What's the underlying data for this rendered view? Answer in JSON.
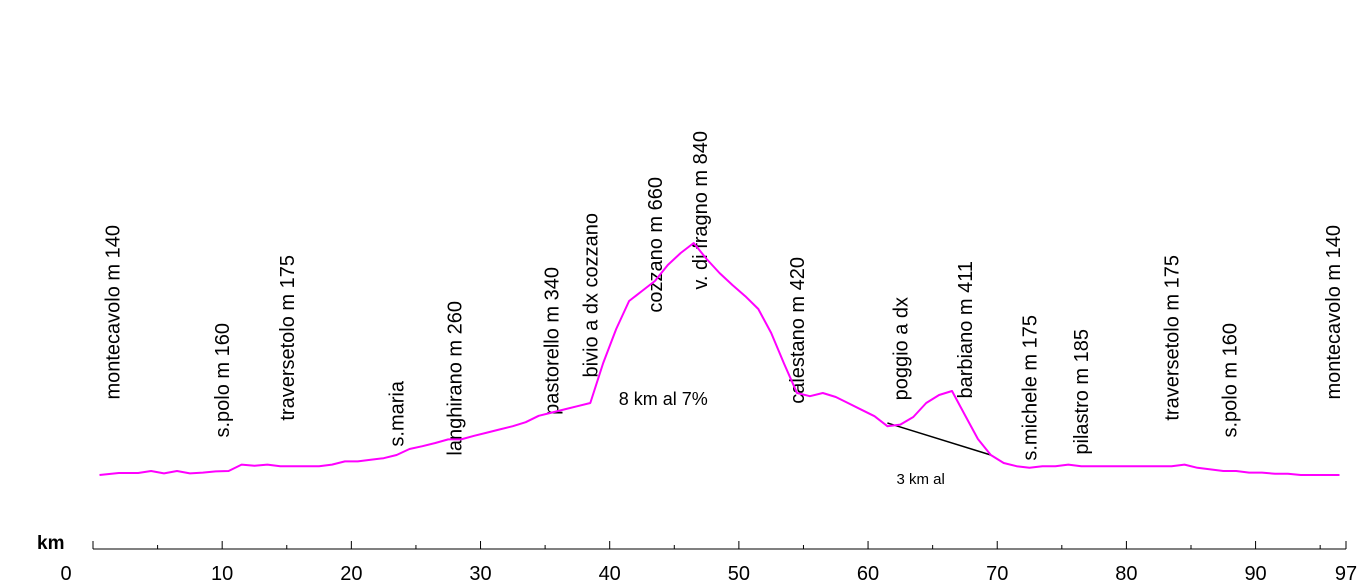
{
  "chart_data": {
    "type": "line",
    "xlabel": "km",
    "colors": {
      "profile": "#ff00ff",
      "annotation_line": "#000000",
      "axis": "#000000"
    },
    "xlim": [
      0,
      97
    ],
    "ylim": [
      0,
      1000
    ],
    "xticks": [
      {
        "value": 0,
        "label": "0"
      },
      {
        "value": 10,
        "label": "10"
      },
      {
        "value": 20,
        "label": "20"
      },
      {
        "value": 30,
        "label": "30"
      },
      {
        "value": 40,
        "label": "40"
      },
      {
        "value": 50,
        "label": "50"
      },
      {
        "value": 60,
        "label": "60"
      },
      {
        "value": 70,
        "label": "70"
      },
      {
        "value": 80,
        "label": "80"
      },
      {
        "value": 90,
        "label": "90"
      },
      {
        "value": 97,
        "label": "97"
      }
    ],
    "minor_ticks": [
      5,
      15,
      25,
      35,
      45,
      55,
      65,
      75,
      85,
      95
    ],
    "series": [
      {
        "points": [
          [
            0.5,
            140
          ],
          [
            2,
            145
          ],
          [
            3.5,
            145
          ],
          [
            4.5,
            150
          ],
          [
            5.5,
            144
          ],
          [
            6.5,
            150
          ],
          [
            7.5,
            144
          ],
          [
            8.5,
            146
          ],
          [
            9.5,
            149
          ],
          [
            10.5,
            150
          ],
          [
            11.5,
            166
          ],
          [
            12.5,
            163
          ],
          [
            13.5,
            166
          ],
          [
            14.5,
            162
          ],
          [
            15.5,
            162
          ],
          [
            16.5,
            162
          ],
          [
            17.5,
            162
          ],
          [
            18.5,
            166
          ],
          [
            19.5,
            174
          ],
          [
            20.5,
            174
          ],
          [
            21.5,
            178
          ],
          [
            22.5,
            182
          ],
          [
            23.5,
            190
          ],
          [
            24.5,
            205
          ],
          [
            25.5,
            212
          ],
          [
            26.5,
            220
          ],
          [
            27.5,
            229
          ],
          [
            28.5,
            229
          ],
          [
            29.5,
            238
          ],
          [
            30.5,
            246
          ],
          [
            31.5,
            254
          ],
          [
            32.5,
            262
          ],
          [
            33.5,
            272
          ],
          [
            34.5,
            288
          ],
          [
            35.5,
            296
          ],
          [
            36.5,
            304
          ],
          [
            37.5,
            312
          ],
          [
            38.5,
            320
          ],
          [
            39.5,
            420
          ],
          [
            40.5,
            505
          ],
          [
            41.5,
            575
          ],
          [
            42.5,
            600
          ],
          [
            43.5,
            625
          ],
          [
            44.5,
            665
          ],
          [
            45.5,
            695
          ],
          [
            46.5,
            720
          ],
          [
            47.5,
            680
          ],
          [
            48.5,
            645
          ],
          [
            49.5,
            615
          ],
          [
            50.5,
            587
          ],
          [
            51.5,
            555
          ],
          [
            52.5,
            495
          ],
          [
            53.5,
            418
          ],
          [
            54.5,
            345
          ],
          [
            55.5,
            337
          ],
          [
            56.5,
            345
          ],
          [
            57.5,
            335
          ],
          [
            58.5,
            319
          ],
          [
            59.5,
            303
          ],
          [
            60.5,
            287
          ],
          [
            61.5,
            262
          ],
          [
            62.5,
            266
          ],
          [
            63.5,
            285
          ],
          [
            64.5,
            320
          ],
          [
            65.5,
            340
          ],
          [
            66.5,
            350
          ],
          [
            67.5,
            290
          ],
          [
            68.5,
            230
          ],
          [
            69.5,
            190
          ],
          [
            70.5,
            170
          ],
          [
            71.5,
            162
          ],
          [
            72.5,
            158
          ],
          [
            73.5,
            162
          ],
          [
            74.5,
            162
          ],
          [
            75.5,
            166
          ],
          [
            76.5,
            162
          ],
          [
            77.5,
            162
          ],
          [
            78.5,
            162
          ],
          [
            79.5,
            162
          ],
          [
            80.5,
            162
          ],
          [
            81.5,
            162
          ],
          [
            82.5,
            162
          ],
          [
            83.5,
            162
          ],
          [
            84.5,
            166
          ],
          [
            85.5,
            158
          ],
          [
            86.5,
            154
          ],
          [
            87.5,
            150
          ],
          [
            88.5,
            150
          ],
          [
            89.5,
            146
          ],
          [
            90.5,
            146
          ],
          [
            91.5,
            143
          ],
          [
            92.5,
            143
          ],
          [
            93.5,
            140
          ],
          [
            94.5,
            140
          ],
          [
            95.5,
            140
          ],
          [
            96.5,
            140
          ]
        ]
      }
    ],
    "annotation_segments": [
      {
        "from": [
          61.5,
          270
        ],
        "to": [
          69.5,
          190
        ]
      }
    ],
    "place_labels": [
      {
        "text": "montecavolo m 140",
        "x": 1.5,
        "y_top": 765
      },
      {
        "text": "s.polo  m 160",
        "x": 10,
        "y_top": 520
      },
      {
        "text": "traversetolo  m 175",
        "x": 15,
        "y_top": 690
      },
      {
        "text": "s.maria",
        "x": 23.5,
        "y_top": 375
      },
      {
        "text": "langhirano  m 260",
        "x": 28,
        "y_top": 575
      },
      {
        "text": "pastorello m 340",
        "x": 35.5,
        "y_top": 660
      },
      {
        "text": "bivio a dx cozzano",
        "x": 38.5,
        "y_top": 795
      },
      {
        "text": "cozzano m 660",
        "x": 43.5,
        "y_top": 885
      },
      {
        "text": "v. di fragno m 840",
        "x": 47,
        "y_top": 1000
      },
      {
        "text": "calestano m 420",
        "x": 54.5,
        "y_top": 685
      },
      {
        "text": "poggio a dx",
        "x": 62.5,
        "y_top": 585
      },
      {
        "text": "barbiano m 411",
        "x": 67.5,
        "y_top": 675
      },
      {
        "text": "s.michele m 175",
        "x": 72.5,
        "y_top": 540
      },
      {
        "text": "pilastro m 185",
        "x": 76.5,
        "y_top": 505
      },
      {
        "text": "traversetolo  m 175",
        "x": 83.5,
        "y_top": 690
      },
      {
        "text": "s.polo  m 160",
        "x": 88,
        "y_top": 520
      },
      {
        "text": "montecavolo  m 140",
        "x": 96,
        "y_top": 765
      }
    ],
    "annotations": [
      {
        "text": "8 km al 7%",
        "x": 40.7,
        "y": 315,
        "size": "big"
      },
      {
        "text": "3 km al",
        "x": 62.2,
        "y": 118,
        "size": "small"
      }
    ]
  }
}
